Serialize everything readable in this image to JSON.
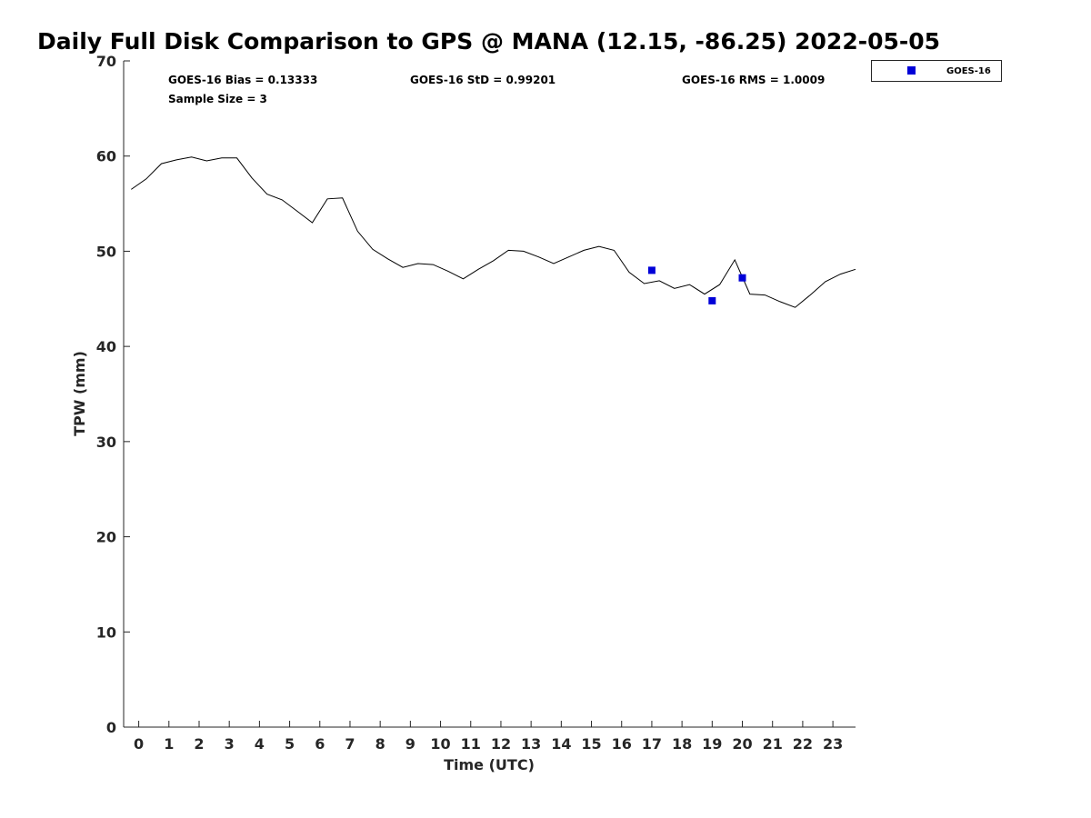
{
  "chart_data": {
    "type": "line",
    "title": "Daily Full Disk Comparison to GPS @ MANA (12.15, -86.25) 2022-05-05",
    "xlabel": "Time (UTC)",
    "ylabel": "TPW (mm)",
    "xlim": [
      -0.5,
      23.75
    ],
    "ylim": [
      0,
      70
    ],
    "x_ticks": [
      0,
      1,
      2,
      3,
      4,
      5,
      6,
      7,
      8,
      9,
      10,
      11,
      12,
      13,
      14,
      15,
      16,
      17,
      18,
      19,
      20,
      21,
      22,
      23
    ],
    "y_ticks": [
      0,
      10,
      20,
      30,
      40,
      50,
      60,
      70
    ],
    "grid": false,
    "legend_position": "outside-top-right",
    "stats": {
      "bias": "GOES-16 Bias = 0.13333",
      "std": "GOES-16 StD = 0.99201",
      "rms": "GOES-16 RMS = 1.0009",
      "sample_size": "Sample Size = 3"
    },
    "series": [
      {
        "kind": "line",
        "color": "#000000",
        "points": [
          [
            -0.25,
            56.5
          ],
          [
            0.25,
            57.6
          ],
          [
            0.75,
            59.2
          ],
          [
            1.25,
            59.6
          ],
          [
            1.75,
            59.9
          ],
          [
            2.25,
            59.5
          ],
          [
            2.75,
            59.8
          ],
          [
            3.25,
            59.8
          ],
          [
            3.75,
            57.7
          ],
          [
            4.25,
            56.0
          ],
          [
            4.75,
            55.4
          ],
          [
            5.25,
            54.2
          ],
          [
            5.75,
            53.0
          ],
          [
            6.25,
            55.5
          ],
          [
            6.75,
            55.6
          ],
          [
            7.25,
            52.1
          ],
          [
            7.75,
            50.2
          ],
          [
            8.25,
            49.2
          ],
          [
            8.75,
            48.3
          ],
          [
            9.25,
            48.7
          ],
          [
            9.75,
            48.6
          ],
          [
            10.25,
            47.9
          ],
          [
            10.75,
            47.1
          ],
          [
            11.25,
            48.1
          ],
          [
            11.75,
            49.0
          ],
          [
            12.25,
            50.1
          ],
          [
            12.75,
            50.0
          ],
          [
            13.25,
            49.4
          ],
          [
            13.75,
            48.7
          ],
          [
            14.25,
            49.4
          ],
          [
            14.75,
            50.1
          ],
          [
            15.25,
            50.5
          ],
          [
            15.75,
            50.1
          ],
          [
            16.25,
            47.8
          ],
          [
            16.75,
            46.6
          ],
          [
            17.25,
            46.9
          ],
          [
            17.75,
            46.1
          ],
          [
            18.25,
            46.5
          ],
          [
            18.75,
            45.5
          ],
          [
            19.25,
            46.5
          ],
          [
            19.75,
            49.1
          ],
          [
            20.25,
            45.5
          ],
          [
            20.75,
            45.4
          ],
          [
            21.25,
            44.7
          ],
          [
            21.75,
            44.1
          ],
          [
            22.25,
            45.4
          ],
          [
            22.75,
            46.8
          ],
          [
            23.25,
            47.6
          ],
          [
            23.75,
            48.1
          ]
        ]
      },
      {
        "kind": "scatter",
        "name": "GOES-16",
        "marker": "square",
        "color": "#0000d8",
        "points": [
          [
            17,
            48.0
          ],
          [
            19,
            44.8
          ],
          [
            20,
            47.2
          ]
        ]
      }
    ]
  }
}
